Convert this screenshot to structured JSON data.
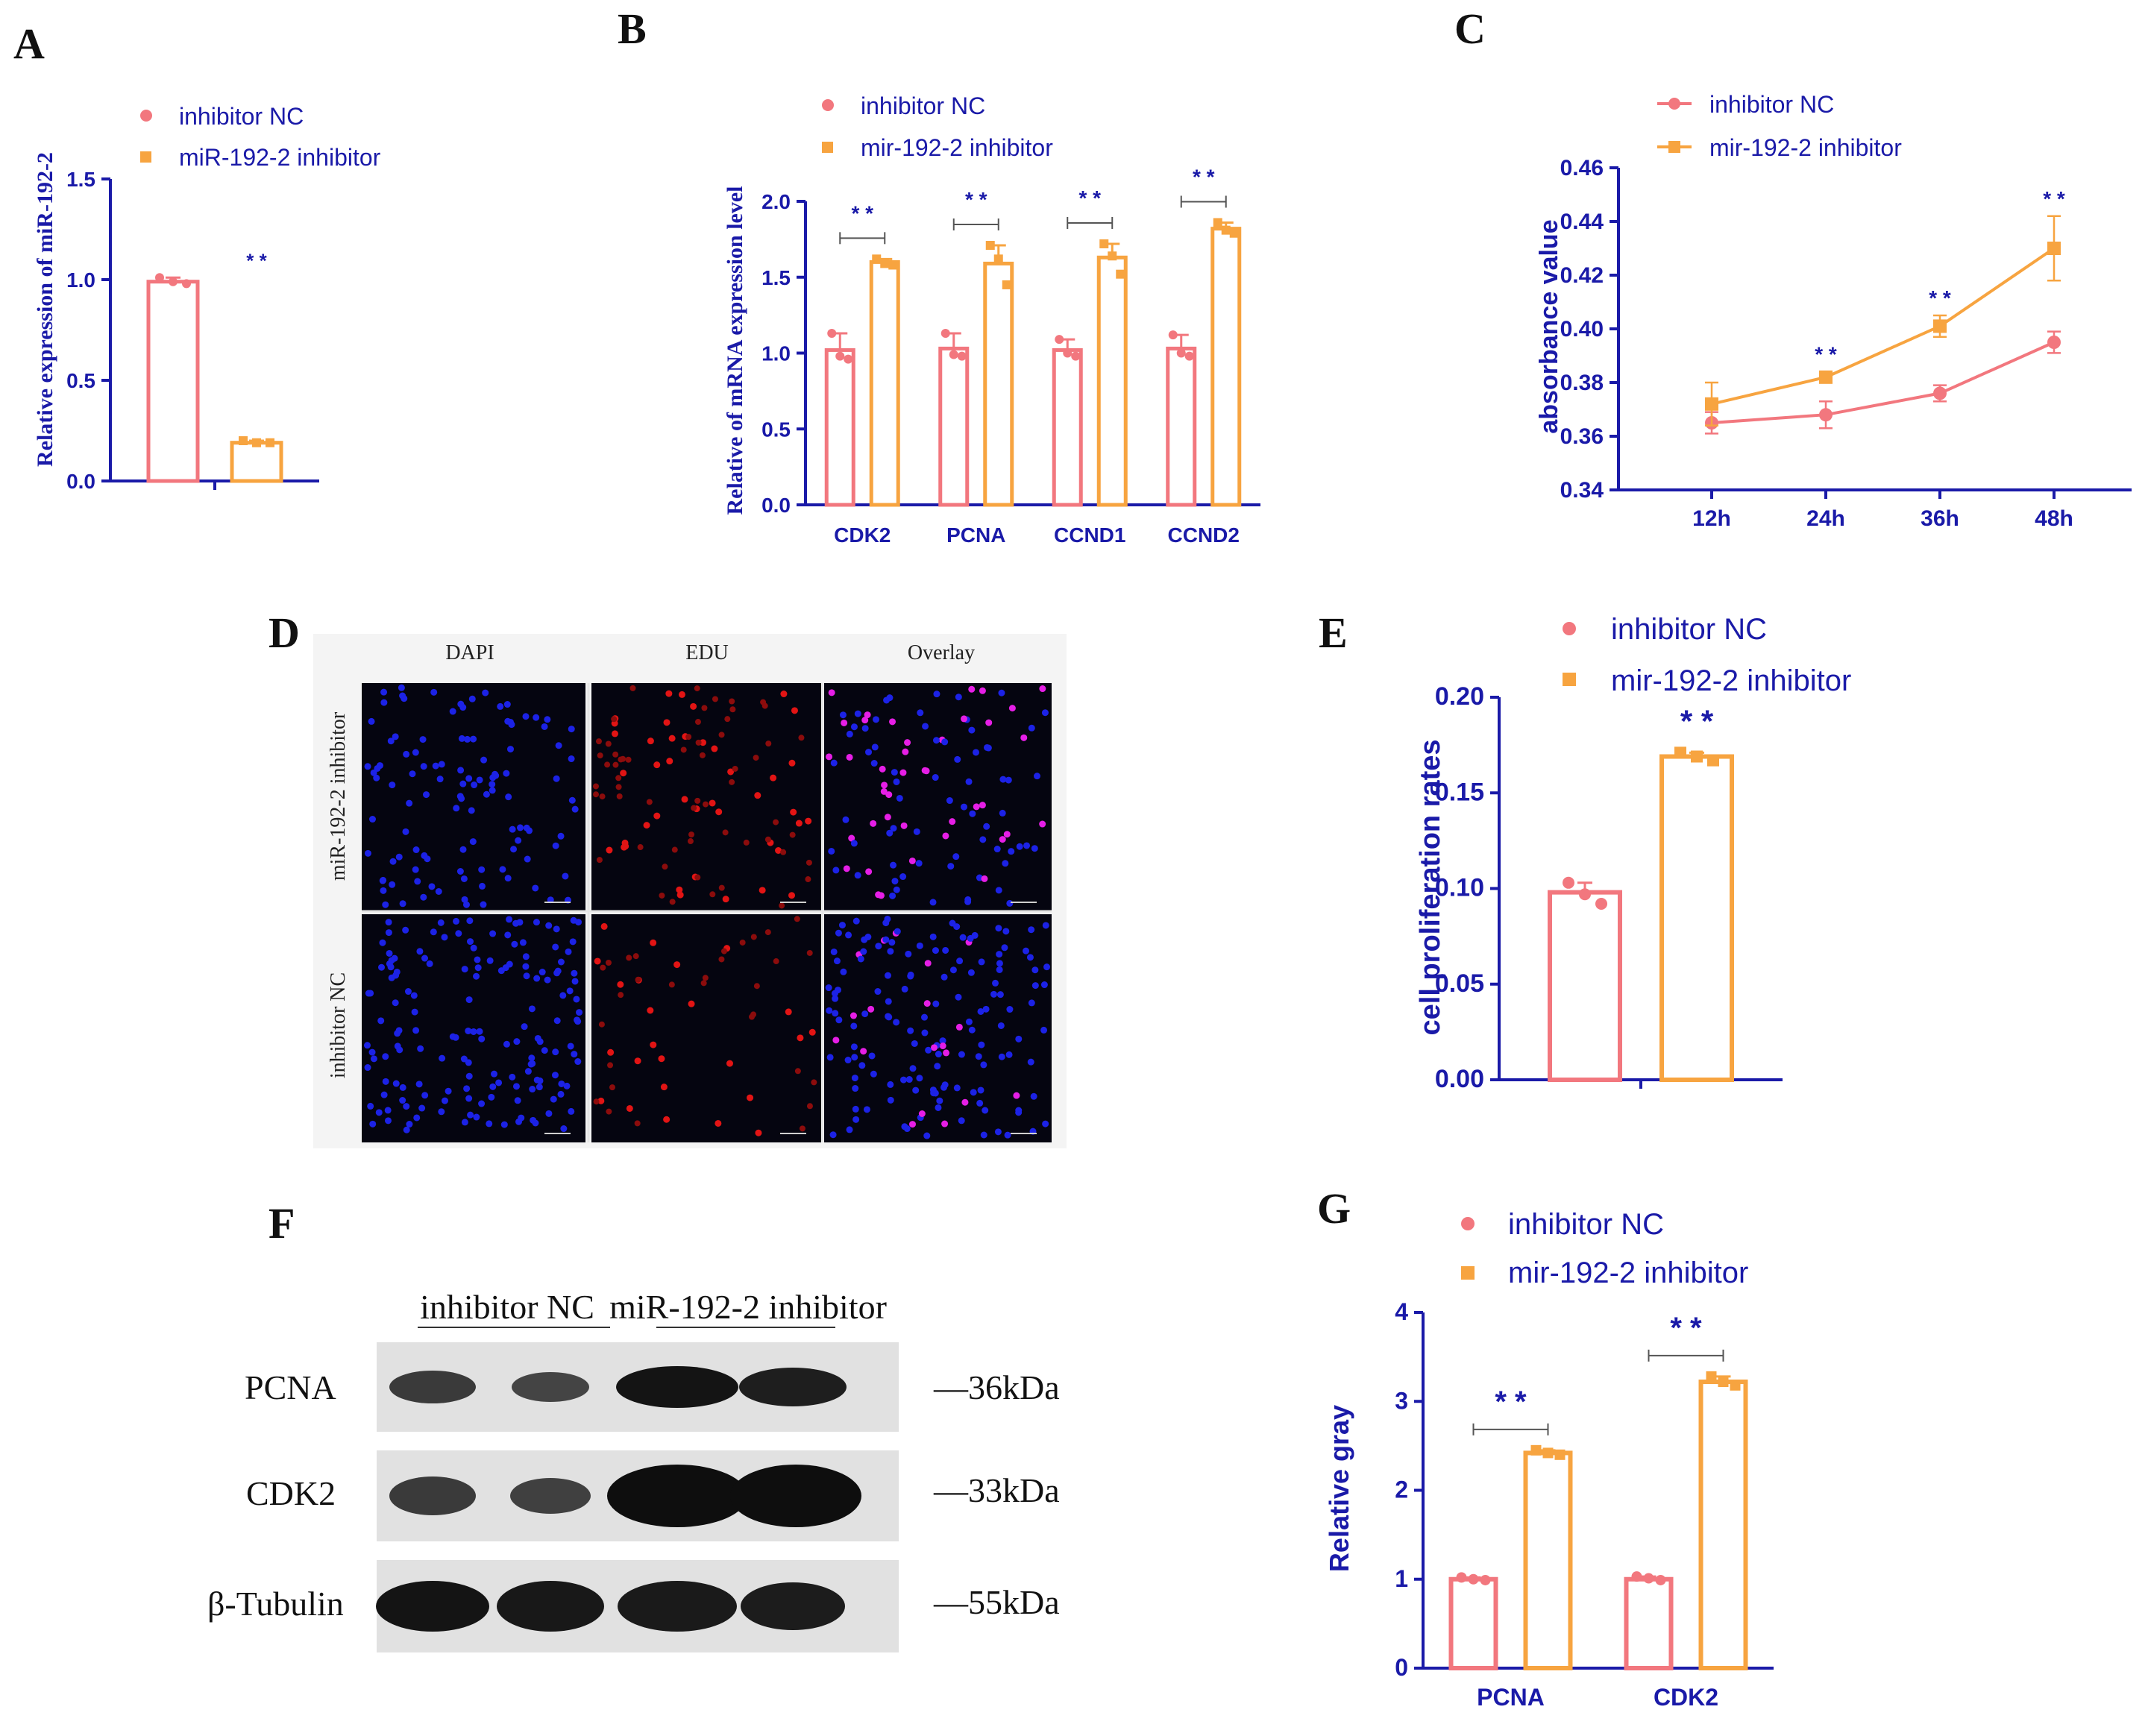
{
  "colors": {
    "nc": "#f2777e",
    "inh": "#f7a440",
    "axis": "#1a1aa8"
  },
  "panels": {
    "A": {
      "letter": "A",
      "ylabel": "Relative expression of miR-192-2",
      "legend": [
        "inhibitor NC",
        "miR-192-2 inhibitor"
      ],
      "sig": "* *"
    },
    "B": {
      "letter": "B",
      "ylabel": "Relative of mRNA expression level",
      "legend": [
        "inhibitor NC",
        "mir-192-2 inhibitor"
      ],
      "sig": "* *"
    },
    "C": {
      "letter": "C",
      "ylabel": "absorbance value",
      "legend": [
        "inhibitor NC",
        "mir-192-2 inhibitor"
      ],
      "sig": "* *"
    },
    "D": {
      "letter": "D",
      "columns": [
        "DAPI",
        "EDU",
        "Overlay"
      ],
      "rows": [
        "miR-192-2 inhibitor",
        "inhibitor NC"
      ]
    },
    "E": {
      "letter": "E",
      "ylabel": "cell proliferation rates",
      "legend": [
        "inhibitor NC",
        "mir-192-2 inhibitor"
      ],
      "sig": "* *"
    },
    "F": {
      "letter": "F",
      "groups": [
        "inhibitor NC",
        "miR-192-2 inhibitor"
      ],
      "proteins": [
        "PCNA",
        "CDK2",
        "β-Tubulin"
      ],
      "sizes": [
        "—36kDa",
        "—33kDa",
        "—55kDa"
      ]
    },
    "G": {
      "letter": "G",
      "ylabel": "Relative gray",
      "legend": [
        "inhibitor NC",
        "mir-192-2 inhibitor"
      ],
      "sig": "* *"
    }
  },
  "chart_data": [
    {
      "panel": "A",
      "type": "bar",
      "categories": [
        ""
      ],
      "ylabel": "Relative expression of miR-192-2",
      "ylim": [
        0,
        1.5
      ],
      "yticks": [
        "0.0",
        "0.5",
        "1.0",
        "1.5"
      ],
      "series": [
        {
          "name": "inhibitor NC",
          "values": [
            0.99
          ],
          "points": [
            [
              1.01,
              0.99,
              0.98
            ]
          ]
        },
        {
          "name": "miR-192-2 inhibitor",
          "values": [
            0.19
          ],
          "points": [
            [
              0.2,
              0.19,
              0.19
            ]
          ]
        }
      ],
      "significance": [
        "* *"
      ]
    },
    {
      "panel": "B",
      "type": "bar",
      "categories": [
        "CDK2",
        "PCNA",
        "CCND1",
        "CCND2"
      ],
      "ylabel": "Relative of mRNA expression level",
      "ylim": [
        0,
        2.0
      ],
      "yticks": [
        "0.0",
        "0.5",
        "1.0",
        "1.5",
        "2.0"
      ],
      "series": [
        {
          "name": "inhibitor NC",
          "values": [
            1.02,
            1.03,
            1.02,
            1.03
          ],
          "points": [
            [
              1.13,
              0.98,
              0.96
            ],
            [
              1.13,
              0.99,
              0.98
            ],
            [
              1.09,
              1.0,
              0.98
            ],
            [
              1.12,
              1.0,
              0.98
            ]
          ]
        },
        {
          "name": "mir-192-2 inhibitor",
          "values": [
            1.6,
            1.59,
            1.63,
            1.82
          ],
          "points": [
            [
              1.62,
              1.59,
              1.58
            ],
            [
              1.71,
              1.62,
              1.45
            ],
            [
              1.72,
              1.64,
              1.52
            ],
            [
              1.86,
              1.81,
              1.79
            ]
          ]
        }
      ],
      "significance": [
        "* *",
        "* *",
        "* *",
        "* *"
      ]
    },
    {
      "panel": "C",
      "type": "line",
      "x": [
        "12h",
        "24h",
        "36h",
        "48h"
      ],
      "ylabel": "absorbance value",
      "ylim": [
        0.34,
        0.46
      ],
      "yticks": [
        "0.34",
        "0.36",
        "0.38",
        "0.40",
        "0.42",
        "0.44",
        "0.46"
      ],
      "series": [
        {
          "name": "inhibitor NC",
          "values": [
            0.365,
            0.368,
            0.376,
            0.395
          ],
          "err": [
            0.004,
            0.005,
            0.003,
            0.004
          ]
        },
        {
          "name": "mir-192-2 inhibitor",
          "values": [
            0.372,
            0.382,
            0.401,
            0.43
          ],
          "err": [
            0.008,
            0.002,
            0.004,
            0.012
          ]
        }
      ],
      "significance": [
        "",
        "* *",
        "* *",
        "* *"
      ]
    },
    {
      "panel": "E",
      "type": "bar",
      "categories": [
        ""
      ],
      "ylabel": "cell proliferation rates",
      "ylim": [
        0,
        0.2
      ],
      "yticks": [
        "0.00",
        "0.05",
        "0.10",
        "0.15",
        "0.20"
      ],
      "series": [
        {
          "name": "inhibitor NC",
          "values": [
            0.098
          ],
          "points": [
            [
              0.103,
              0.097,
              0.092
            ]
          ]
        },
        {
          "name": "mir-192-2 inhibitor",
          "values": [
            0.169
          ],
          "points": [
            [
              0.171,
              0.169,
              0.167
            ]
          ]
        }
      ],
      "significance": [
        "* *"
      ]
    },
    {
      "panel": "G",
      "type": "bar",
      "categories": [
        "PCNA",
        "CDK2"
      ],
      "ylabel": "Relative gray",
      "ylim": [
        0,
        4
      ],
      "yticks": [
        "0",
        "1",
        "2",
        "3",
        "4"
      ],
      "series": [
        {
          "name": "inhibitor NC",
          "values": [
            1.0,
            1.0
          ],
          "points": [
            [
              1.02,
              1.0,
              0.99
            ],
            [
              1.03,
              1.01,
              0.99
            ]
          ]
        },
        {
          "name": "mir-192-2 inhibitor",
          "values": [
            2.42,
            3.22
          ],
          "points": [
            [
              2.45,
              2.42,
              2.4
            ],
            [
              3.28,
              3.22,
              3.18
            ]
          ]
        }
      ],
      "significance": [
        "* *",
        "* *"
      ]
    }
  ]
}
